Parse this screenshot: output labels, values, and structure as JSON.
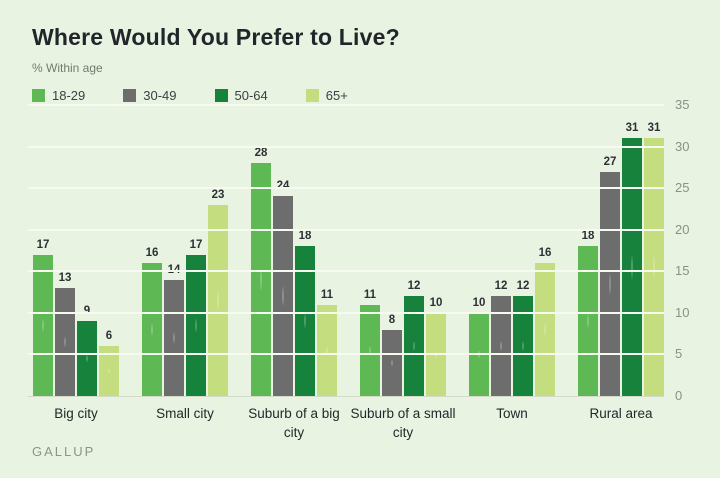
{
  "title": "Where Would You Prefer to Live?",
  "subtitle": "% Within age",
  "source": "GALLUP",
  "colors": {
    "background": "#e9f3e2",
    "gridline": "#f7faf1",
    "axis_text": "#8b9187",
    "value_label": "#2d3034",
    "series_18_29": "#5eb854",
    "series_30_49": "#6d6d6d",
    "series_50_64": "#17823b",
    "series_65_plus": "#c4dd7e"
  },
  "chart_data": {
    "type": "bar",
    "title": "Where Would You Prefer to Live?",
    "subtitle": "% Within age",
    "categories": [
      "Big city",
      "Small city",
      "Suburb of a big city",
      "Suburb of a small city",
      "Town",
      "Rural area"
    ],
    "series": [
      {
        "name": "18-29",
        "color": "#5eb854",
        "values": [
          17,
          16,
          28,
          11,
          10,
          18
        ]
      },
      {
        "name": "30-49",
        "color": "#6d6d6d",
        "values": [
          13,
          14,
          24,
          8,
          12,
          27
        ]
      },
      {
        "name": "50-64",
        "color": "#17823b",
        "values": [
          9,
          17,
          18,
          12,
          12,
          31
        ]
      },
      {
        "name": "65+",
        "color": "#c4dd7e",
        "values": [
          6,
          23,
          11,
          10,
          16,
          31
        ]
      }
    ],
    "ylim": [
      0,
      35
    ],
    "yticks": [
      0,
      5,
      10,
      15,
      20,
      25,
      30,
      35
    ],
    "axis_side": "right",
    "grid": true,
    "value_labels": true,
    "legend_position": "top",
    "xlabel": "",
    "ylabel": ""
  }
}
